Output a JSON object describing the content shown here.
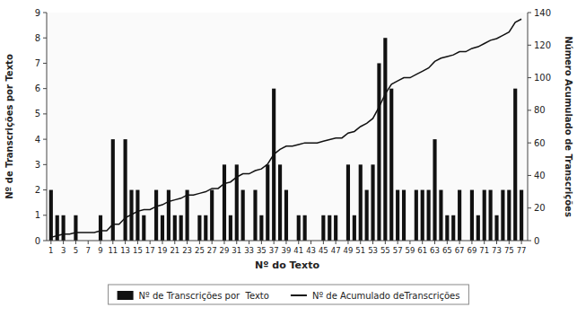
{
  "chart_data": {
    "type": "bar",
    "xlabel": "Nº do Texto",
    "ylabel": "Nº de Transcrições por Texto",
    "y2label": "Número Acumulado de Transcrições",
    "x": [
      1,
      2,
      3,
      4,
      5,
      6,
      7,
      8,
      9,
      10,
      11,
      12,
      13,
      14,
      15,
      16,
      17,
      18,
      19,
      20,
      21,
      22,
      23,
      24,
      25,
      26,
      27,
      28,
      29,
      30,
      31,
      32,
      33,
      34,
      35,
      36,
      37,
      38,
      39,
      40,
      41,
      42,
      43,
      44,
      45,
      46,
      47,
      48,
      49,
      50,
      51,
      52,
      53,
      54,
      55,
      56,
      57,
      58,
      59,
      60,
      61,
      62,
      63,
      64,
      65,
      66,
      67,
      68,
      69,
      70,
      71,
      72,
      73,
      74,
      75,
      76,
      77
    ],
    "xlim": [
      0.3,
      78
    ],
    "xticks": [
      1,
      3,
      5,
      7,
      9,
      11,
      13,
      15,
      17,
      19,
      21,
      23,
      25,
      27,
      29,
      31,
      33,
      35,
      37,
      39,
      41,
      43,
      45,
      47,
      49,
      51,
      53,
      55,
      57,
      59,
      61,
      63,
      65,
      67,
      69,
      71,
      73,
      75,
      77
    ],
    "ylim": [
      0,
      9
    ],
    "yticks": [
      0,
      1,
      2,
      3,
      4,
      5,
      6,
      7,
      8,
      9
    ],
    "y2lim": [
      0,
      140
    ],
    "y2ticks": [
      0,
      20,
      40,
      60,
      80,
      100,
      120,
      140
    ],
    "grid": false,
    "legend": "bottom",
    "series": [
      {
        "name": "Nº de Transcrições por  Texto",
        "type": "bar",
        "color": "#111111",
        "values": [
          2,
          1,
          1,
          0,
          1,
          0,
          0,
          0,
          1,
          0,
          4,
          0,
          4,
          2,
          2,
          1,
          0,
          2,
          1,
          2,
          1,
          1,
          2,
          0,
          1,
          1,
          2,
          0,
          3,
          1,
          3,
          2,
          0,
          2,
          1,
          3,
          6,
          3,
          2,
          0,
          1,
          1,
          0,
          0,
          1,
          1,
          1,
          0,
          3,
          1,
          3,
          2,
          3,
          7,
          8,
          6,
          2,
          2,
          0,
          2,
          2,
          2,
          4,
          2,
          1,
          1,
          2,
          0,
          2,
          1,
          2,
          2,
          1,
          2,
          2,
          6,
          2
        ]
      },
      {
        "name": "Nº de Acumulado deTranscrições",
        "type": "line",
        "axis": "y2",
        "color": "#111111",
        "values": [
          2,
          3,
          4,
          4,
          5,
          5,
          5,
          5,
          6,
          6,
          10,
          10,
          14,
          16,
          18,
          19,
          19,
          21,
          22,
          24,
          25,
          26,
          28,
          28,
          29,
          30,
          32,
          32,
          35,
          36,
          39,
          41,
          41,
          43,
          44,
          47,
          53,
          56,
          58,
          58,
          59,
          60,
          60,
          60,
          61,
          62,
          63,
          63,
          66,
          67,
          70,
          72,
          75,
          82,
          90,
          96,
          98,
          100,
          100,
          102,
          104,
          106,
          110,
          112,
          113,
          114,
          116,
          116,
          118,
          119,
          121,
          123,
          124,
          126,
          128,
          134,
          136
        ]
      }
    ]
  }
}
